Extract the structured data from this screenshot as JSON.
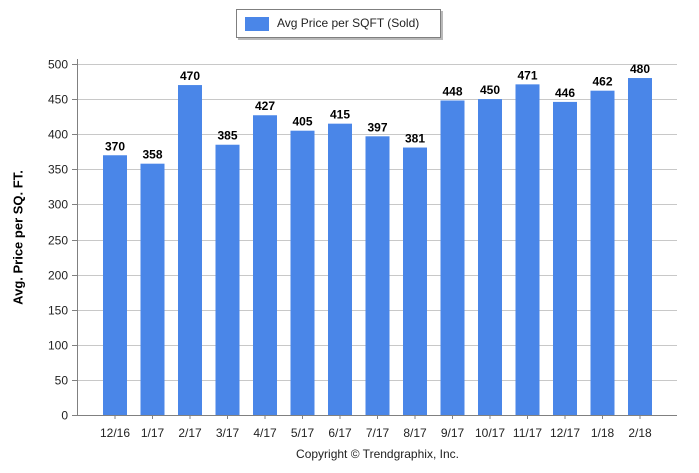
{
  "legend": {
    "label": "Avg Price per SQFT (Sold)",
    "color": "#4a86e8"
  },
  "footer": {
    "copyright": "Copyright © Trendgraphix, Inc."
  },
  "chart_data": {
    "type": "bar",
    "title": "",
    "xlabel": "",
    "ylabel": "Avg. Price per SQ. FT.",
    "ylim": [
      0,
      500
    ],
    "yticks": [
      0,
      50,
      100,
      150,
      200,
      250,
      300,
      350,
      400,
      450,
      500
    ],
    "grid": true,
    "legend_position": "top-center",
    "categories": [
      "12/16",
      "1/17",
      "2/17",
      "3/17",
      "4/17",
      "5/17",
      "6/17",
      "7/17",
      "8/17",
      "9/17",
      "10/17",
      "11/17",
      "12/17",
      "1/18",
      "2/18"
    ],
    "series": [
      {
        "name": "Avg Price per SQFT (Sold)",
        "color": "#4a86e8",
        "values": [
          370,
          358,
          470,
          385,
          427,
          405,
          415,
          397,
          381,
          448,
          450,
          471,
          446,
          462,
          480
        ]
      }
    ]
  }
}
